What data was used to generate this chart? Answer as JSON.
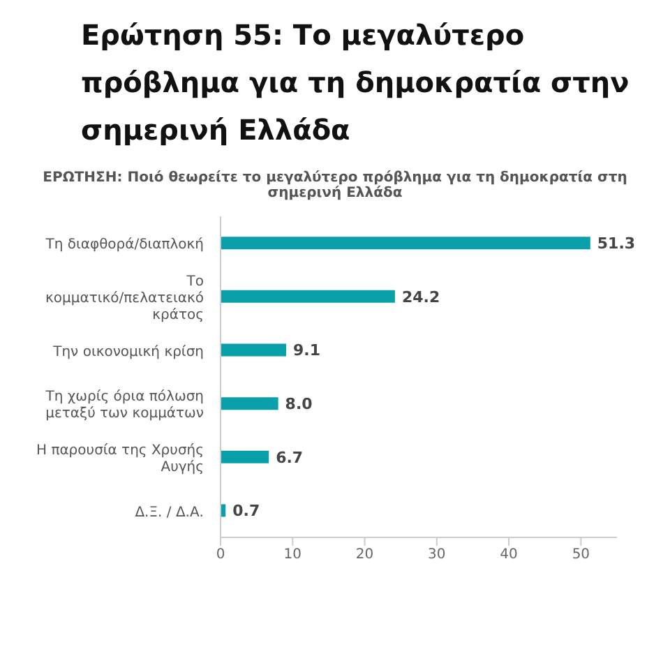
{
  "chart_data": {
    "type": "bar",
    "orientation": "horizontal",
    "title": "Ερώτηση 55: Το μεγαλύτερο πρόβλημα για τη δημοκρατία στην σημερινή Ελλάδα",
    "subtitle": "ΕΡΩΤΗΣΗ: Ποιό θεωρείτε το μεγαλύτερο πρόβλημα για τη δημοκρατία στη σημερινή Ελλάδα",
    "categories": [
      "Τη διαφθορά/διαπλοκή",
      "Το κομματικό/πελατειακό κράτος",
      "Την οικονομική κρίση",
      "Τη χωρίς όρια πόλωση μεταξύ των κομμάτων",
      "Η παρουσία της Χρυσής Αυγής",
      "Δ.Ξ. / Δ.Α."
    ],
    "values": [
      51.3,
      24.2,
      9.1,
      8.0,
      6.7,
      0.7
    ],
    "value_labels": [
      "51.3",
      "24.2",
      "9.1",
      "8.0",
      "6.7",
      "0.7"
    ],
    "color": "#0aa0aa",
    "xlim": [
      0,
      55
    ],
    "xticks": [
      0,
      10,
      20,
      30,
      40,
      50
    ],
    "grid": false,
    "legend": false
  }
}
